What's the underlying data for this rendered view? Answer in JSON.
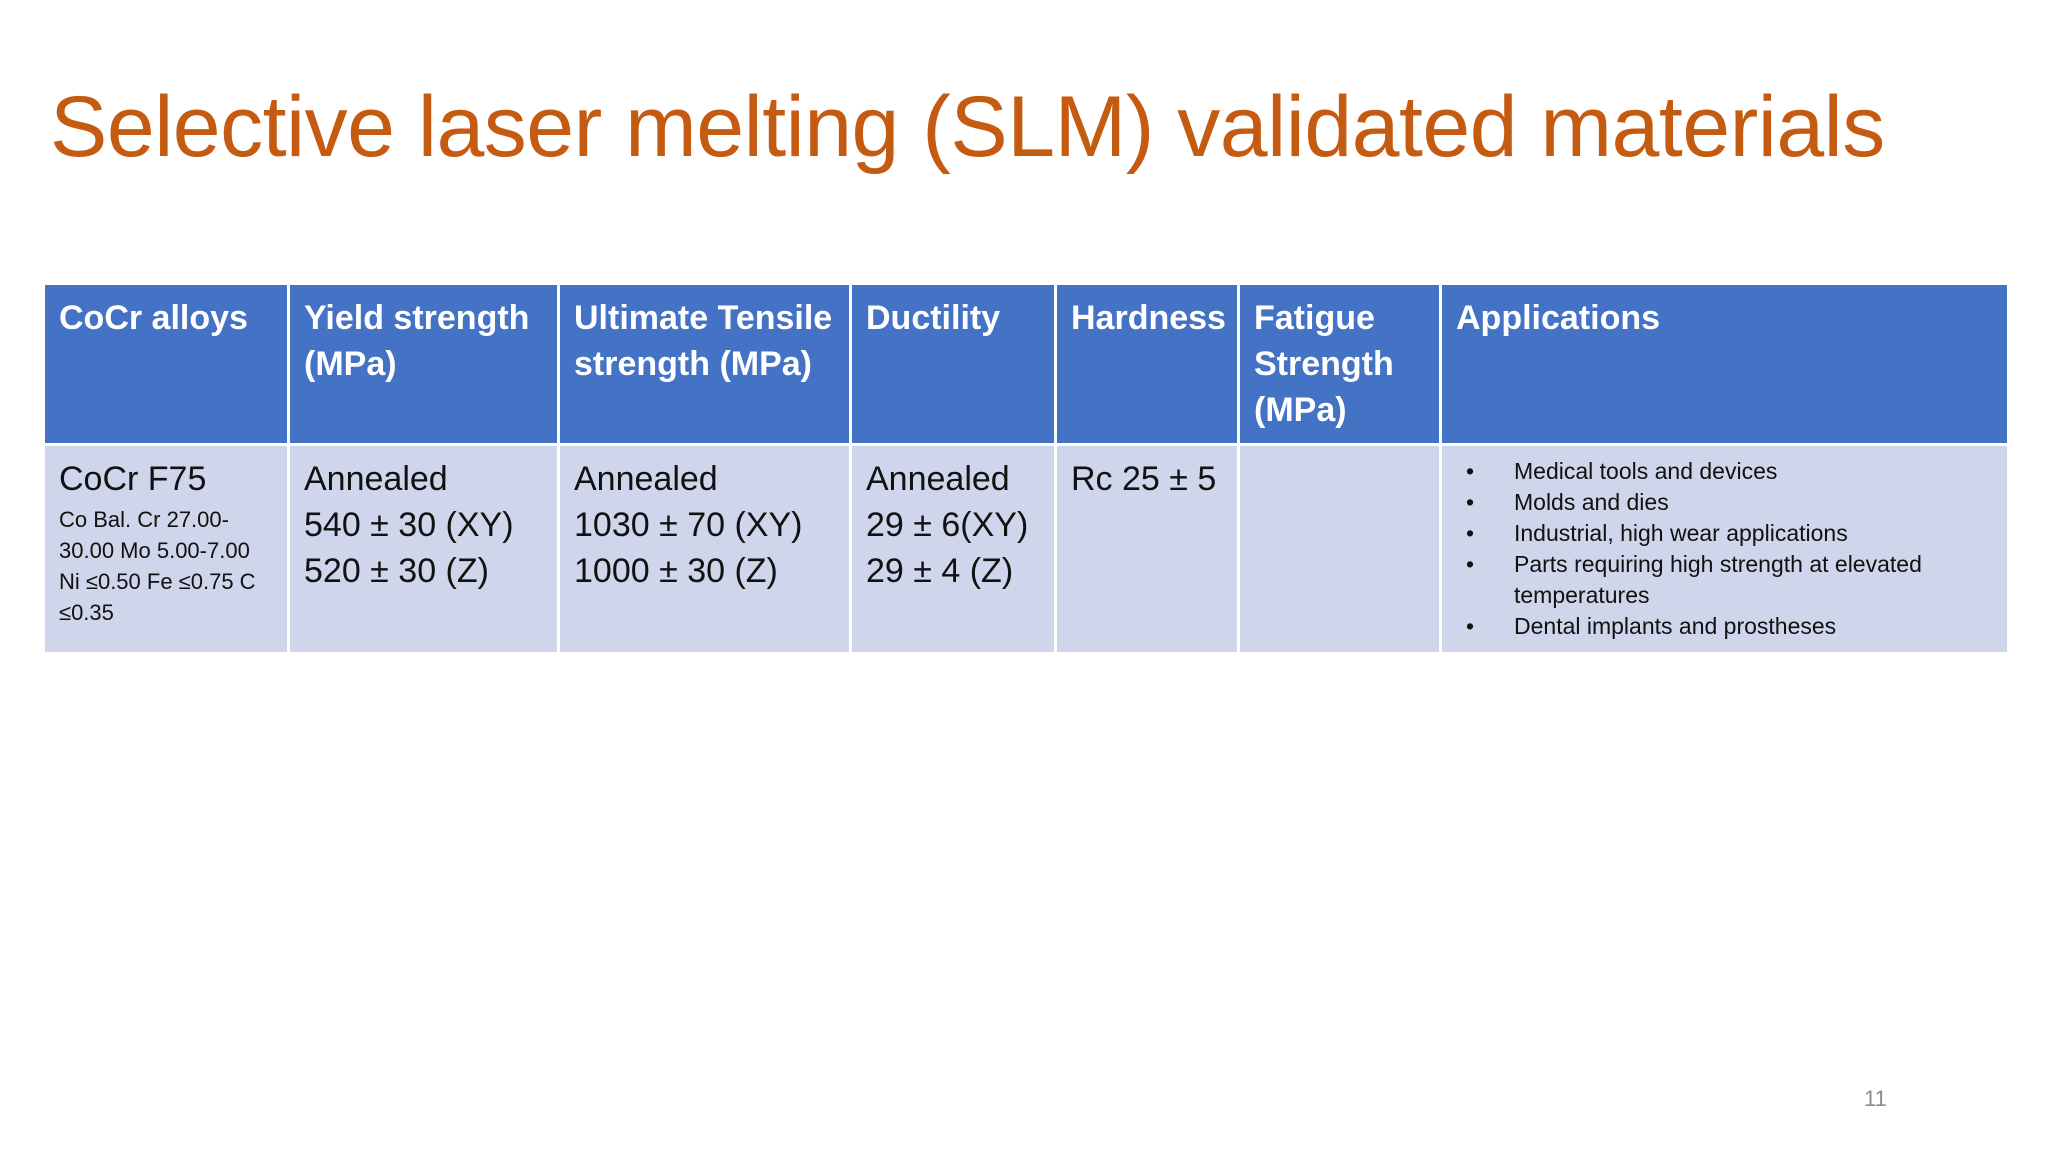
{
  "slide": {
    "title": "Selective laser melting (SLM) validated materials",
    "page_number": "11",
    "colors": {
      "title": "#C55A11",
      "header_fill": "#4472C4",
      "body_fill": "#CFD5EA"
    }
  },
  "table": {
    "headers": [
      "CoCr alloys",
      "Yield strength (MPa)",
      "Ultimate Tensile strength (MPa)",
      "Ductility",
      "Hardness",
      "Fatigue Strength (MPa)",
      "Applications"
    ],
    "row": {
      "material": {
        "name": "CoCr F75",
        "composition": "Co Bal. Cr 27.00-30.00 Mo 5.00-7.00 Ni ≤0.50 Fe ≤0.75 C ≤0.35"
      },
      "yield": [
        "Annealed",
        "540 ± 30 (XY)",
        "520 ± 30 (Z)"
      ],
      "uts": [
        "Annealed",
        "1030 ± 70 (XY)",
        "1000 ± 30 (Z)"
      ],
      "ductility": [
        "Annealed",
        "29 ± 6(XY)",
        "29 ± 4 (Z)"
      ],
      "hardness": "Rc 25 ± 5",
      "fatigue": "",
      "applications": [
        "Medical tools and devices",
        "Molds and dies",
        "Industrial, high wear applications",
        "Parts requiring high strength at elevated temperatures",
        "Dental implants and prostheses"
      ]
    }
  }
}
